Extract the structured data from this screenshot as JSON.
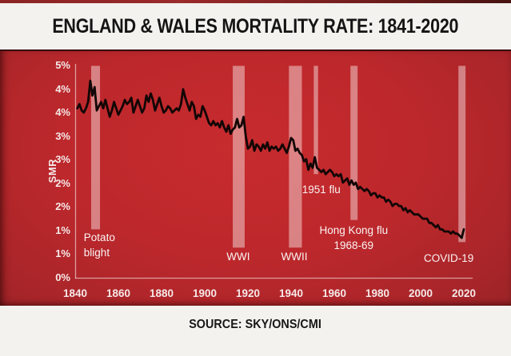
{
  "header": {
    "title": "ENGLAND & WALES MORTALITY RATE: 1841-2020"
  },
  "footer": {
    "source": "SOURCE: SKY/ONS/CMI"
  },
  "colors": {
    "panel_center": "#c72b2e",
    "panel_edge": "#601c1c",
    "top_bar": "#7e2321",
    "line": "#120606",
    "band": "rgba(255,255,255,0.42)",
    "axis": "rgba(255,255,255,0.55)",
    "tick_label": "#f6e9e9",
    "title_text": "#141414",
    "background": "#f3f2ef"
  },
  "chart_data": {
    "type": "line",
    "title": "ENGLAND & WALES MORTALITY RATE: 1841-2020",
    "xlabel": "",
    "ylabel": "SMR",
    "xlim": [
      1840,
      2024
    ],
    "ylim": [
      0,
      5
    ],
    "grid": false,
    "legend": "none",
    "x_ticks": [
      1840,
      1860,
      1880,
      1900,
      1920,
      1940,
      1960,
      1980,
      2000,
      2020
    ],
    "y_tick_labels": [
      "5%",
      "4%",
      "4%",
      "3%",
      "3%",
      "2%",
      "2%",
      "1%",
      "1%",
      "0%"
    ],
    "series": [
      {
        "name": "SMR",
        "points": [
          [
            1841,
            4.0
          ],
          [
            1842,
            4.1
          ],
          [
            1843,
            3.95
          ],
          [
            1844,
            3.9
          ],
          [
            1845,
            4.0
          ],
          [
            1846,
            4.15
          ],
          [
            1847,
            4.65
          ],
          [
            1848,
            4.3
          ],
          [
            1849,
            4.5
          ],
          [
            1850,
            3.95
          ],
          [
            1851,
            4.05
          ],
          [
            1852,
            4.15
          ],
          [
            1853,
            4.0
          ],
          [
            1854,
            4.2
          ],
          [
            1855,
            4.0
          ],
          [
            1856,
            3.8
          ],
          [
            1857,
            3.95
          ],
          [
            1858,
            4.15
          ],
          [
            1859,
            4.0
          ],
          [
            1860,
            3.85
          ],
          [
            1861,
            3.95
          ],
          [
            1862,
            4.05
          ],
          [
            1863,
            4.2
          ],
          [
            1864,
            4.1
          ],
          [
            1865,
            4.15
          ],
          [
            1866,
            4.25
          ],
          [
            1867,
            3.9
          ],
          [
            1868,
            4.05
          ],
          [
            1869,
            4.2
          ],
          [
            1870,
            4.05
          ],
          [
            1871,
            3.9
          ],
          [
            1872,
            4.0
          ],
          [
            1873,
            4.3
          ],
          [
            1874,
            4.15
          ],
          [
            1875,
            4.35
          ],
          [
            1876,
            4.2
          ],
          [
            1877,
            3.95
          ],
          [
            1878,
            4.1
          ],
          [
            1879,
            4.25
          ],
          [
            1880,
            4.05
          ],
          [
            1881,
            3.9
          ],
          [
            1882,
            3.95
          ],
          [
            1883,
            4.05
          ],
          [
            1884,
            4.0
          ],
          [
            1885,
            3.9
          ],
          [
            1886,
            3.95
          ],
          [
            1887,
            4.0
          ],
          [
            1888,
            3.95
          ],
          [
            1889,
            4.1
          ],
          [
            1890,
            4.45
          ],
          [
            1891,
            4.25
          ],
          [
            1892,
            4.1
          ],
          [
            1893,
            3.95
          ],
          [
            1894,
            4.15
          ],
          [
            1895,
            4.05
          ],
          [
            1896,
            3.75
          ],
          [
            1897,
            3.85
          ],
          [
            1898,
            3.8
          ],
          [
            1899,
            4.05
          ],
          [
            1900,
            3.95
          ],
          [
            1901,
            3.8
          ],
          [
            1902,
            3.65
          ],
          [
            1903,
            3.6
          ],
          [
            1904,
            3.7
          ],
          [
            1905,
            3.6
          ],
          [
            1906,
            3.65
          ],
          [
            1907,
            3.55
          ],
          [
            1908,
            3.7
          ],
          [
            1909,
            3.55
          ],
          [
            1910,
            3.45
          ],
          [
            1911,
            3.6
          ],
          [
            1912,
            3.4
          ],
          [
            1913,
            3.5
          ],
          [
            1914,
            3.55
          ],
          [
            1915,
            3.75
          ],
          [
            1916,
            3.55
          ],
          [
            1917,
            3.6
          ],
          [
            1918,
            3.8
          ],
          [
            1919,
            3.35
          ],
          [
            1920,
            3.05
          ],
          [
            1921,
            3.1
          ],
          [
            1922,
            3.25
          ],
          [
            1923,
            3.0
          ],
          [
            1924,
            3.15
          ],
          [
            1925,
            3.1
          ],
          [
            1926,
            3.0
          ],
          [
            1927,
            3.15
          ],
          [
            1928,
            3.05
          ],
          [
            1929,
            3.2
          ],
          [
            1930,
            3.0
          ],
          [
            1931,
            3.1
          ],
          [
            1932,
            3.05
          ],
          [
            1933,
            3.1
          ],
          [
            1934,
            3.0
          ],
          [
            1935,
            3.05
          ],
          [
            1936,
            3.15
          ],
          [
            1937,
            3.05
          ],
          [
            1938,
            2.95
          ],
          [
            1939,
            3.1
          ],
          [
            1940,
            3.3
          ],
          [
            1941,
            3.25
          ],
          [
            1942,
            3.0
          ],
          [
            1943,
            3.05
          ],
          [
            1944,
            2.95
          ],
          [
            1945,
            2.9
          ],
          [
            1946,
            2.75
          ],
          [
            1947,
            2.8
          ],
          [
            1948,
            2.55
          ],
          [
            1949,
            2.7
          ],
          [
            1950,
            2.6
          ],
          [
            1951,
            2.85
          ],
          [
            1952,
            2.6
          ],
          [
            1953,
            2.55
          ],
          [
            1954,
            2.5
          ],
          [
            1955,
            2.55
          ],
          [
            1956,
            2.45
          ],
          [
            1957,
            2.5
          ],
          [
            1958,
            2.55
          ],
          [
            1959,
            2.5
          ],
          [
            1960,
            2.4
          ],
          [
            1961,
            2.45
          ],
          [
            1962,
            2.4
          ],
          [
            1963,
            2.45
          ],
          [
            1964,
            2.25
          ],
          [
            1965,
            2.3
          ],
          [
            1966,
            2.35
          ],
          [
            1967,
            2.2
          ],
          [
            1968,
            2.3
          ],
          [
            1969,
            2.2
          ],
          [
            1970,
            2.25
          ],
          [
            1971,
            2.1
          ],
          [
            1972,
            2.15
          ],
          [
            1973,
            2.1
          ],
          [
            1974,
            2.05
          ],
          [
            1975,
            2.1
          ],
          [
            1976,
            2.05
          ],
          [
            1977,
            1.95
          ],
          [
            1978,
            2.0
          ],
          [
            1979,
            2.0
          ],
          [
            1980,
            1.9
          ],
          [
            1981,
            1.95
          ],
          [
            1982,
            1.9
          ],
          [
            1983,
            1.9
          ],
          [
            1984,
            1.8
          ],
          [
            1985,
            1.85
          ],
          [
            1986,
            1.8
          ],
          [
            1987,
            1.7
          ],
          [
            1988,
            1.75
          ],
          [
            1989,
            1.75
          ],
          [
            1990,
            1.7
          ],
          [
            1991,
            1.7
          ],
          [
            1992,
            1.6
          ],
          [
            1993,
            1.65
          ],
          [
            1994,
            1.55
          ],
          [
            1995,
            1.6
          ],
          [
            1996,
            1.55
          ],
          [
            1997,
            1.5
          ],
          [
            1998,
            1.5
          ],
          [
            1999,
            1.5
          ],
          [
            2000,
            1.45
          ],
          [
            2001,
            1.4
          ],
          [
            2002,
            1.4
          ],
          [
            2003,
            1.4
          ],
          [
            2004,
            1.3
          ],
          [
            2005,
            1.3
          ],
          [
            2006,
            1.25
          ],
          [
            2007,
            1.2
          ],
          [
            2008,
            1.25
          ],
          [
            2009,
            1.15
          ],
          [
            2010,
            1.15
          ],
          [
            2011,
            1.1
          ],
          [
            2012,
            1.1
          ],
          [
            2013,
            1.1
          ],
          [
            2014,
            1.05
          ],
          [
            2015,
            1.1
          ],
          [
            2016,
            1.05
          ],
          [
            2017,
            1.05
          ],
          [
            2018,
            1.0
          ],
          [
            2019,
            0.95
          ],
          [
            2020,
            1.15
          ]
        ]
      }
    ],
    "annotations": [
      {
        "id": "potato-blight",
        "label": "Potato blight",
        "lines": [
          "Potato",
          "blight"
        ],
        "band": {
          "x1": 1847.4,
          "x2": 1851.5,
          "y_bottom": 1.15
        },
        "text": {
          "x": 1844,
          "y": 0.95,
          "align": "left"
        }
      },
      {
        "id": "wwi",
        "label": "WWI",
        "lines": [
          "WWI"
        ],
        "band": {
          "x1": 1913,
          "x2": 1918.5,
          "y_bottom": 0.72
        },
        "text": {
          "x": 1915.5,
          "y": 0.5,
          "align": "center"
        }
      },
      {
        "id": "wwii",
        "label": "WWII",
        "lines": [
          "WWII"
        ],
        "band": {
          "x1": 1939,
          "x2": 1945,
          "y_bottom": 0.72
        },
        "text": {
          "x": 1941.5,
          "y": 0.5,
          "align": "center"
        }
      },
      {
        "id": "flu-1951",
        "label": "1951 flu",
        "lines": [
          "1951 flu"
        ],
        "band": {
          "x1": 1950.5,
          "x2": 1952.5,
          "y_bottom": 2.45
        },
        "text": {
          "x": 1954,
          "y": 2.08,
          "align": "center"
        }
      },
      {
        "id": "hong-kong-flu",
        "label": "Hong Kong flu 1968-69",
        "lines": [
          "Hong Kong flu",
          "1968-69"
        ],
        "band": {
          "x1": 1967.5,
          "x2": 1970.8,
          "y_bottom": 1.37
        },
        "text": {
          "x": 1969,
          "y": 1.12,
          "align": "center"
        }
      },
      {
        "id": "covid-19",
        "label": "COVID-19",
        "lines": [
          "COVID-19"
        ],
        "band": {
          "x1": 2017.5,
          "x2": 2020.8,
          "y_bottom": 0.85
        },
        "text": {
          "x": 2013,
          "y": 0.47,
          "align": "center"
        }
      }
    ]
  }
}
